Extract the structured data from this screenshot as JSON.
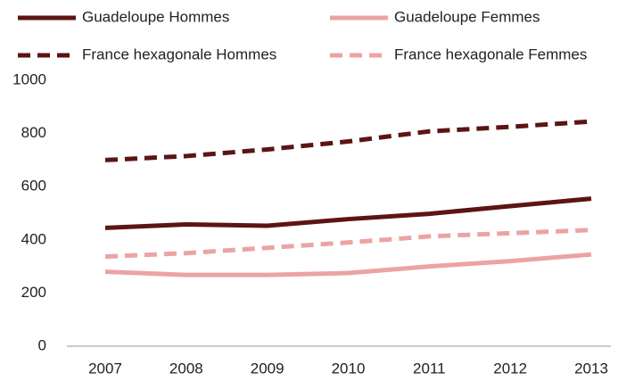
{
  "chart_data": {
    "type": "line",
    "categories": [
      "2007",
      "2008",
      "2009",
      "2010",
      "2011",
      "2012",
      "2013"
    ],
    "series": [
      {
        "name": "Guadeloupe Hommes",
        "color": "#5c1414",
        "dashed": false,
        "values": [
          445,
          458,
          453,
          478,
          498,
          527,
          555
        ]
      },
      {
        "name": "Guadeloupe Femmes",
        "color": "#eca3a3",
        "dashed": false,
        "values": [
          280,
          268,
          268,
          275,
          300,
          320,
          345
        ]
      },
      {
        "name": "France hexagonale Hommes",
        "color": "#5c1414",
        "dashed": true,
        "values": [
          700,
          715,
          740,
          770,
          808,
          825,
          845
        ]
      },
      {
        "name": "France hexagonale Femmes",
        "color": "#eca3a3",
        "dashed": true,
        "values": [
          337,
          350,
          370,
          390,
          413,
          425,
          437
        ]
      }
    ],
    "ylim": [
      0,
      1000
    ],
    "yticks": [
      0,
      200,
      400,
      600,
      800,
      1000
    ],
    "grid": false,
    "legend": "top"
  }
}
